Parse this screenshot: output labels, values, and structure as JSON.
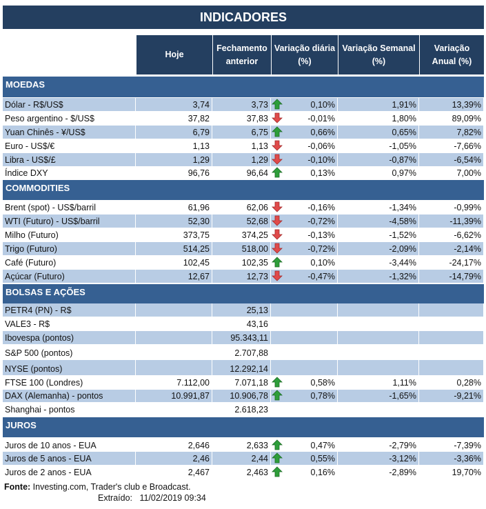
{
  "title": "INDICADORES",
  "headers": [
    "Hoje",
    "Fechamento anterior",
    "Variação diária (%)",
    "Variação Semanal (%)",
    "Variação Anual (%)"
  ],
  "colors": {
    "title_bg": "#243f60",
    "section_bg": "#366092",
    "stripe": "#b8cce4",
    "up": "#2e9e3a",
    "down": "#e04a4a"
  },
  "sections": [
    {
      "name": "MOEDAS",
      "rows": [
        {
          "label": "Dólar - R$/US$",
          "hoje": "3,74",
          "fech": "3,73",
          "arrow": "up",
          "dia": "0,10%",
          "sem": "1,91%",
          "ano": "13,39%"
        },
        {
          "label": "Peso argentino - $/US$",
          "hoje": "37,82",
          "fech": "37,83",
          "arrow": "down",
          "dia": "-0,01%",
          "sem": "1,80%",
          "ano": "89,09%"
        },
        {
          "label": "Yuan Chinês - ¥/US$",
          "hoje": "6,79",
          "fech": "6,75",
          "arrow": "up",
          "dia": "0,66%",
          "sem": "0,65%",
          "ano": "7,82%"
        },
        {
          "label": "Euro - US$/€",
          "hoje": "1,13",
          "fech": "1,13",
          "arrow": "down",
          "dia": "-0,06%",
          "sem": "-1,05%",
          "ano": "-7,66%"
        },
        {
          "label": "Libra - US$/£",
          "hoje": "1,29",
          "fech": "1,29",
          "arrow": "down",
          "dia": "-0,10%",
          "sem": "-0,87%",
          "ano": "-6,54%"
        },
        {
          "label": "Índice DXY",
          "hoje": "96,76",
          "fech": "96,64",
          "arrow": "up",
          "dia": "0,13%",
          "sem": "0,97%",
          "ano": "7,00%"
        }
      ]
    },
    {
      "name": "COMMODITIES",
      "rows": [
        {
          "label": "Brent (spot) - US$/barril",
          "hoje": "61,96",
          "fech": "62,06",
          "arrow": "down",
          "dia": "-0,16%",
          "sem": "-1,34%",
          "ano": "-0,99%"
        },
        {
          "label": "WTI (Futuro) - US$/barril",
          "hoje": "52,30",
          "fech": "52,68",
          "arrow": "down",
          "dia": "-0,72%",
          "sem": "-4,58%",
          "ano": "-11,39%"
        },
        {
          "label": "Milho (Futuro)",
          "hoje": "373,75",
          "fech": "374,25",
          "arrow": "down",
          "dia": "-0,13%",
          "sem": "-1,52%",
          "ano": "-6,62%"
        },
        {
          "label": "Trigo (Futuro)",
          "hoje": "514,25",
          "fech": "518,00",
          "arrow": "down",
          "dia": "-0,72%",
          "sem": "-2,09%",
          "ano": "-2,14%"
        },
        {
          "label": "Café (Futuro)",
          "hoje": "102,45",
          "fech": "102,35",
          "arrow": "up",
          "dia": "0,10%",
          "sem": "-3,44%",
          "ano": "-24,17%"
        },
        {
          "label": "Açúcar (Futuro)",
          "hoje": "12,67",
          "fech": "12,73",
          "arrow": "down",
          "dia": "-0,47%",
          "sem": "-1,32%",
          "ano": "-14,79%"
        }
      ]
    },
    {
      "name": "BOLSAS E AÇÕES",
      "rows": [
        {
          "label": "PETR4 (PN) - R$",
          "hoje": "",
          "fech": "25,13",
          "arrow": "",
          "dia": "",
          "sem": "",
          "ano": ""
        },
        {
          "label": "VALE3 - R$",
          "hoje": "",
          "fech": "43,16",
          "arrow": "",
          "dia": "",
          "sem": "",
          "ano": ""
        },
        {
          "label": "Ibovespa (pontos)",
          "hoje": "",
          "fech": "95.343,11",
          "arrow": "",
          "dia": "",
          "sem": "",
          "ano": ""
        },
        {
          "label": "S&P 500 (pontos)",
          "hoje": "",
          "fech": "2.707,88",
          "arrow": "",
          "dia": "",
          "sem": "",
          "ano": ""
        },
        {
          "label": "NYSE (pontos)",
          "hoje": "",
          "fech": "12.292,14",
          "arrow": "",
          "dia": "",
          "sem": "",
          "ano": ""
        },
        {
          "label": "FTSE 100 (Londres)",
          "hoje": "7.112,00",
          "fech": "7.071,18",
          "arrow": "up",
          "dia": "0,58%",
          "sem": "1,11%",
          "ano": "0,28%"
        },
        {
          "label": "DAX (Alemanha) - pontos",
          "hoje": "10.991,87",
          "fech": "10.906,78",
          "arrow": "up",
          "dia": "0,78%",
          "sem": "-1,65%",
          "ano": "-9,21%"
        },
        {
          "label": "Shanghai - pontos",
          "hoje": "",
          "fech": "2.618,23",
          "arrow": "",
          "dia": "",
          "sem": "",
          "ano": ""
        }
      ]
    },
    {
      "name": "JUROS",
      "rows": [
        {
          "label": "Juros de 10 anos - EUA",
          "hoje": "2,646",
          "fech": "2,633",
          "arrow": "up",
          "dia": "0,47%",
          "sem": "-2,79%",
          "ano": "-7,39%"
        },
        {
          "label": "Juros de 5 anos - EUA",
          "hoje": "2,46",
          "fech": "2,44",
          "arrow": "up",
          "dia": "0,55%",
          "sem": "-3,12%",
          "ano": "-3,36%"
        },
        {
          "label": "Juros de 2 anos - EUA",
          "hoje": "2,467",
          "fech": "2,463",
          "arrow": "up",
          "dia": "0,16%",
          "sem": "-2,89%",
          "ano": "19,70%"
        }
      ]
    }
  ],
  "footer": {
    "source_label": "Fonte:",
    "source": " Investing.com, Trader's club e Broadcast.",
    "extracted_label": "Extraído:",
    "extracted": "11/02/2019 09:34"
  }
}
